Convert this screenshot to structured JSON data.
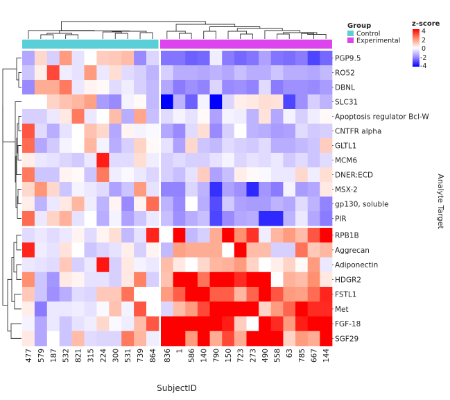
{
  "chart_data": {
    "type": "heatmap",
    "xlabel": "SubjectID",
    "ylabel": "Analyte Target",
    "columns": [
      "477",
      "579",
      "187",
      "532",
      "821",
      "315",
      "224",
      "300",
      "531",
      "739",
      "864",
      "836",
      "1",
      "586",
      "140",
      "790",
      "150",
      "723",
      "273",
      "490",
      "558",
      "63",
      "785",
      "667",
      "144"
    ],
    "column_groups": [
      "Control",
      "Control",
      "Control",
      "Control",
      "Control",
      "Control",
      "Control",
      "Control",
      "Control",
      "Control",
      "Control",
      "Experimental",
      "Experimental",
      "Experimental",
      "Experimental",
      "Experimental",
      "Experimental",
      "Experimental",
      "Experimental",
      "Experimental",
      "Experimental",
      "Experimental",
      "Experimental",
      "Experimental",
      "Experimental"
    ],
    "rows": [
      "PGP9.5",
      "RO52",
      "DBNL",
      "SLC31",
      "Apoptosis regulator Bcl-W",
      "CNTFR alpha",
      "GLTL1",
      "MCM6",
      "DNER:ECD",
      "MSX-2",
      "gp130, soluble",
      "PIR",
      "RPB1B",
      "Aggrecan",
      "Adiponectin",
      "HDGR2",
      "FSTL1",
      "Met",
      "FGF-18",
      "SGF29"
    ],
    "values": [
      [
        -1.5,
        0.7,
        -0.8,
        1.8,
        -0.5,
        0,
        0.9,
        1.0,
        1.2,
        -2.0,
        -0.7,
        -2.3,
        -2.3,
        -2.6,
        -2.5,
        -0.3,
        -2.2,
        -2.5,
        -2.3,
        -1.6,
        -2.3,
        -2.4,
        -2.2,
        -3.0,
        -2.5
      ],
      [
        -1.0,
        0.3,
        3.0,
        -0.3,
        -0.5,
        1.8,
        -0.4,
        0.6,
        -0.6,
        -0.8,
        -1.3,
        -0.8,
        -1.4,
        -1.4,
        -1.5,
        -1.3,
        -1.5,
        -1.1,
        -1.4,
        -1.4,
        -1.0,
        -1.4,
        -1.4,
        -1.5,
        -1.2
      ],
      [
        -2.0,
        1.5,
        1.5,
        2.3,
        -0.4,
        0.2,
        0.1,
        -0.6,
        -0.3,
        -0.8,
        -1.2,
        -1.5,
        -2.2,
        -1.9,
        -2.1,
        -0.7,
        -2.0,
        -1.9,
        -2.1,
        -0.6,
        -2.2,
        -1.9,
        -1.9,
        -2.0,
        -1.7
      ],
      [
        0,
        0,
        0.8,
        1.1,
        1.3,
        1.7,
        -1.7,
        -2.0,
        -0.2,
        0.1,
        -1.2,
        -4.0,
        -1.3,
        -2.6,
        -0.2,
        -4.0,
        -0.7,
        0.3,
        0.4,
        0.6,
        0.5,
        -3.0,
        -1.9,
        -0.8,
        -1.3
      ],
      [
        -0.8,
        -0.8,
        -0.4,
        0.4,
        2.3,
        -0.4,
        0,
        1.2,
        -1.4,
        1.6,
        -1.1,
        -0.6,
        -0.2,
        -0.5,
        0.1,
        -1.6,
        -0.2,
        -0.3,
        -1.3,
        0.5,
        -1.5,
        -0.2,
        -0.8,
        -0.3,
        0.1
      ],
      [
        2.8,
        -0.6,
        -1.4,
        -0.5,
        0,
        1.1,
        0.7,
        -1.5,
        0.2,
        -0.2,
        -0.1,
        -1.5,
        -2.0,
        -0.6,
        0.6,
        -2.0,
        -0.8,
        0,
        -1.3,
        -1.4,
        -1.7,
        -1.6,
        -0.6,
        -0.9,
        -0.8
      ],
      [
        2.5,
        -1.5,
        -0.9,
        -0.2,
        0,
        1.3,
        -0.2,
        -1.4,
        -0.8,
        0.8,
        0.1,
        -0.5,
        -1.6,
        0.7,
        -1.0,
        -1.2,
        -0.6,
        -0.8,
        -0.9,
        -0.6,
        -1.4,
        -1.4,
        -1.2,
        -1.0,
        0.9
      ],
      [
        0.3,
        -0.4,
        -0.5,
        -0.7,
        -0.9,
        -0.4,
        3.6,
        -0.6,
        -0.6,
        0.6,
        -0.3,
        -0.8,
        -0.6,
        -0.8,
        -0.8,
        -0.5,
        -0.2,
        -0.7,
        -0.5,
        -0.6,
        -0.4,
        -0.9,
        -0.6,
        -1.0,
        -0.6
      ],
      [
        2.3,
        -1.0,
        -1.0,
        0.2,
        0.1,
        -1.0,
        2.3,
        -0.3,
        -0.1,
        -0.4,
        -0.7,
        -0.8,
        -1.1,
        -0.5,
        0.9,
        -1.6,
        -1.1,
        0.3,
        0.1,
        -0.1,
        -0.4,
        -0.4,
        0.7,
        -0.3,
        0.6
      ],
      [
        0.7,
        1.9,
        0.7,
        -1.0,
        -0.2,
        -0.4,
        -0.6,
        -1.6,
        -1.0,
        1.8,
        -0.5,
        -2.1,
        -2.1,
        -0.7,
        -1.3,
        -3.3,
        -1.6,
        -1.9,
        -3.4,
        -1.8,
        -2.2,
        -0.2,
        -1.7,
        -1.5,
        0.4
      ],
      [
        0.3,
        -1.3,
        -0.4,
        0.4,
        1.3,
        -0.3,
        -1.3,
        0.2,
        -2.0,
        0.2,
        2.5,
        -1.3,
        -2.0,
        0,
        -1.4,
        -2.9,
        -0.9,
        -1.6,
        -1.7,
        -1.7,
        -1.3,
        -1.5,
        -0.6,
        -1.3,
        -2.1
      ],
      [
        2.5,
        -0.4,
        0.8,
        1.4,
        -0.5,
        0,
        -1.4,
        -0.2,
        -1.6,
        -1.0,
        -0.4,
        -1.1,
        -1.9,
        -1.4,
        -1.1,
        -3.0,
        -2.0,
        -1.5,
        -1.4,
        -3.4,
        -3.4,
        -1.3,
        -0.4,
        -1.5,
        -2.2
      ],
      [
        -0.6,
        -0.4,
        -0.6,
        -0.4,
        0.2,
        -0.6,
        0.2,
        0.6,
        -1.2,
        -0.5,
        3.5,
        0,
        4,
        -1.2,
        -0.8,
        1.5,
        4,
        2.0,
        3.3,
        -0.3,
        1.3,
        1.8,
        1.2,
        2.8,
        4
      ],
      [
        3.5,
        -0.3,
        -0.5,
        0.5,
        0,
        -1.0,
        -0.7,
        -0.5,
        0.3,
        -0.8,
        0.2,
        -1.2,
        1.7,
        1.5,
        1.5,
        1.5,
        0,
        4,
        1.2,
        1.2,
        -0.8,
        -0.8,
        2.4,
        1.0,
        1.3
      ],
      [
        -0.4,
        -0.5,
        -0.6,
        1.0,
        -0.8,
        -0.4,
        3.7,
        -0.8,
        0.4,
        -0.2,
        -0.4,
        1.2,
        0.4,
        0,
        0.7,
        1.3,
        1.4,
        1.8,
        0.8,
        0,
        0.3,
        0.8,
        0.1,
        1.8,
        -0.4
      ],
      [
        2.0,
        -1.0,
        -1.8,
        0.4,
        0.2,
        -0.5,
        -0.5,
        -0.8,
        0.4,
        2.2,
        -0.8,
        1.1,
        4,
        4,
        2.4,
        4,
        4,
        3.4,
        4,
        4,
        0,
        1.4,
        1.2,
        2.0,
        0.4
      ],
      [
        1.0,
        -1.0,
        -1.9,
        -1.4,
        -0.6,
        -0.7,
        1.0,
        1.0,
        2.4,
        0,
        0,
        1.8,
        2.7,
        4,
        4,
        2.7,
        2.7,
        1.3,
        2.6,
        4,
        2.8,
        1.8,
        1.7,
        2.5,
        3.5
      ],
      [
        0.3,
        -2.2,
        -0.4,
        -0.4,
        -0.3,
        -0.5,
        -0.1,
        1.1,
        -0.2,
        2.8,
        0,
        -0.7,
        1.2,
        1.8,
        3.0,
        4,
        4,
        4,
        4,
        0.8,
        1.8,
        2.6,
        4,
        3.4,
        3.4
      ],
      [
        -0.2,
        -1.5,
        -0.4,
        -1.0,
        -0.5,
        -0.3,
        0.7,
        -0.1,
        -0.3,
        1.2,
        2.8,
        4,
        4,
        4,
        4,
        4,
        3.6,
        0.9,
        0,
        4,
        3.4,
        1.8,
        3.6,
        4,
        4
      ],
      [
        0.4,
        -1.5,
        0,
        -1.0,
        1.2,
        -0.6,
        -0.7,
        -0.7,
        2.3,
        1.3,
        -0.3,
        4,
        4,
        1.8,
        4,
        1.5,
        3.0,
        1.5,
        4,
        4,
        4,
        0.8,
        1.8,
        1.5,
        4
      ]
    ],
    "color_scale": {
      "title": "z-score",
      "min": -4,
      "max": 4,
      "ticks": [
        "4",
        "2",
        "0",
        "-2",
        "-4"
      ],
      "low": "#0000ff",
      "mid": "#ffffff",
      "high": "#ff0000"
    },
    "legend": {
      "title": "Group",
      "placement": "top-right",
      "entries": [
        {
          "label": "Control",
          "color": "#5bcfd8"
        },
        {
          "label": "Experimental",
          "color": "#dc45ee"
        }
      ]
    }
  }
}
